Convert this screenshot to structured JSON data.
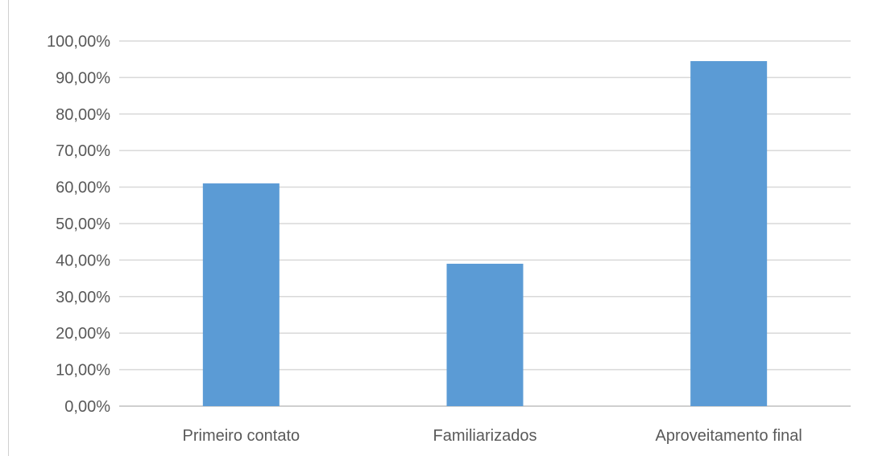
{
  "chart_data": {
    "type": "bar",
    "categories": [
      "Primeiro contato",
      "Familiarizados",
      "Aproveitamento final"
    ],
    "values": [
      61.0,
      39.0,
      94.5
    ],
    "y_ticks": [
      "0,00%",
      "10,00%",
      "20,00%",
      "30,00%",
      "40,00%",
      "50,00%",
      "60,00%",
      "70,00%",
      "80,00%",
      "90,00%",
      "100,00%"
    ],
    "ylim": [
      0,
      100
    ],
    "bar_color": "#5b9bd5",
    "grid": true,
    "title": "",
    "xlabel": "",
    "ylabel": ""
  }
}
